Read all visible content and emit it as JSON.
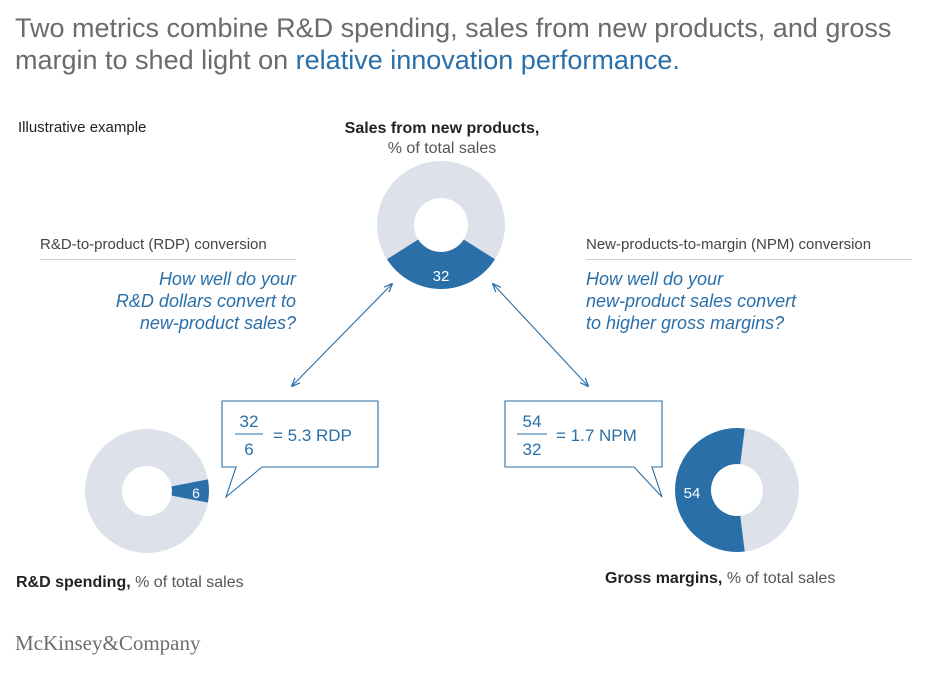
{
  "title": {
    "part1": "Two metrics combine R&D spending, sales from new products, and gross margin to shed light on ",
    "part2": "relative innovation performance."
  },
  "illustrative": "Illustrative example",
  "colors": {
    "blue": "#2a6fa8",
    "grey": "#dde2ea",
    "text_blue": "#2a6fa8"
  },
  "charts": {
    "new_products": {
      "bold": "Sales from new products,",
      "unit": "% of total sales",
      "value": 32,
      "value_label": "32"
    },
    "rd_spending": {
      "bold": "R&D spending,",
      "unit": "% of total sales",
      "value": 6,
      "value_label": "6"
    },
    "gross_margins": {
      "bold": "Gross margins,",
      "unit": "% of total sales",
      "value": 54,
      "value_label": "54"
    }
  },
  "rdp": {
    "header": "R&D-to-product (RDP) conversion",
    "question": [
      "How well do your",
      "R&D dollars convert to",
      "new-product sales?"
    ],
    "numerator": "32",
    "denominator": "6",
    "result": "= 5.3 RDP"
  },
  "npm": {
    "header": "New-products-to-margin (NPM) conversion",
    "question": [
      "How well do your",
      "new-product sales convert",
      "to higher gross margins?"
    ],
    "numerator": "54",
    "denominator": "32",
    "result": "= 1.7 NPM"
  },
  "logo": "McKinsey&Company"
}
